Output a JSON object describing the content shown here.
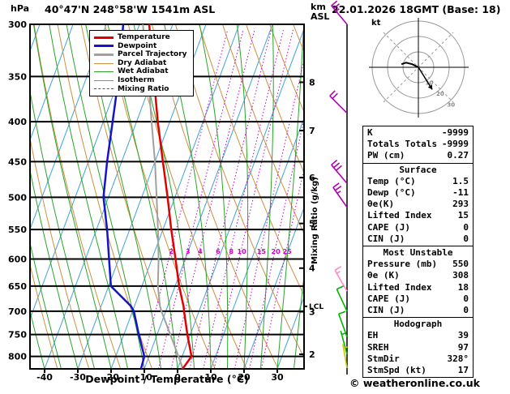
{
  "header": {
    "pressure_unit": "hPa",
    "station": "40°47'N 248°58'W 1541m ASL",
    "datetime": "22.01.2026 18GMT (Base: 18)",
    "altitude_unit_line1": "km",
    "altitude_unit_line2": "ASL"
  },
  "axes": {
    "xlabel": "Dewpoint / Temperature (°C)",
    "right_axis_label": "Mixing Ratio (g/kg)",
    "lcl_label": "LCL"
  },
  "legend": {
    "items": [
      {
        "label": "Temperature",
        "color": "#e00000",
        "thickness": 3,
        "style": "solid"
      },
      {
        "label": "Dewpoint",
        "color": "#1414cc",
        "thickness": 3,
        "style": "solid"
      },
      {
        "label": "Parcel Trajectory",
        "color": "#a0a0a0",
        "thickness": 3,
        "style": "solid"
      },
      {
        "label": "Dry Adiabat",
        "color": "#d08f3e",
        "thickness": 1,
        "style": "solid"
      },
      {
        "label": "Wet Adiabat",
        "color": "#29a329",
        "thickness": 1,
        "style": "solid"
      },
      {
        "label": "Isotherm",
        "color": "#3fa2d8",
        "thickness": 1,
        "style": "solid"
      },
      {
        "label": "Mixing Ratio",
        "color": "#cc00cc",
        "thickness": 1,
        "style": "dashed"
      }
    ]
  },
  "hodograph": {
    "unit_label": "kt",
    "ring_labels_kt": [
      10,
      20,
      30
    ],
    "storm_dir_deg": 328,
    "storm_speed_kt": 17,
    "trace_uv_kt": [
      [
        0,
        0
      ],
      [
        -4,
        2
      ],
      [
        -8,
        3
      ],
      [
        -11,
        2
      ]
    ]
  },
  "table": {
    "sections": [
      {
        "title": "",
        "rows": [
          {
            "label": "K",
            "value": "-9999"
          },
          {
            "label": "Totals Totals",
            "value": "-9999"
          },
          {
            "label": "PW (cm)",
            "value": "0.27"
          }
        ]
      },
      {
        "title": "Surface",
        "rows": [
          {
            "label": "Temp (°C)",
            "value": "1.5"
          },
          {
            "label": "Dewp (°C)",
            "value": "-11"
          },
          {
            "label": "θe(K)",
            "value": "293"
          },
          {
            "label": "Lifted Index",
            "value": "15"
          },
          {
            "label": "CAPE (J)",
            "value": "0"
          },
          {
            "label": "CIN (J)",
            "value": "0"
          }
        ]
      },
      {
        "title": "Most Unstable",
        "rows": [
          {
            "label": "Pressure (mb)",
            "value": "550"
          },
          {
            "label": "θe (K)",
            "value": "308"
          },
          {
            "label": "Lifted Index",
            "value": "18"
          },
          {
            "label": "CAPE (J)",
            "value": "0"
          },
          {
            "label": "CIN (J)",
            "value": "0"
          }
        ]
      },
      {
        "title": "Hodograph",
        "rows": [
          {
            "label": "EH",
            "value": "39"
          },
          {
            "label": "SREH",
            "value": "97"
          },
          {
            "label": "StmDir",
            "value": "328°"
          },
          {
            "label": "StmSpd (kt)",
            "value": "17"
          }
        ]
      }
    ]
  },
  "footer": {
    "copyright": "© weatheronline.co.uk"
  },
  "chart_data": {
    "type": "skewt-logp-sounding",
    "title": "40°47'N 248°58'W 1541m ASL",
    "valid": "22.01.2026 18GMT (Base: 18)",
    "xlabel": "Dewpoint / Temperature (°C)",
    "x_ticks_C": [
      -40,
      -30,
      -20,
      -10,
      0,
      10,
      20,
      30
    ],
    "pressure_axis_hPa": [
      300,
      350,
      400,
      450,
      500,
      550,
      600,
      650,
      700,
      750,
      800
    ],
    "pressure_range_hPa": [
      300,
      830
    ],
    "km_asl_ticks": [
      2,
      3,
      4,
      5,
      6,
      7,
      8
    ],
    "mixing_ratio_lines_gkg": [
      2,
      3,
      4,
      6,
      8,
      10,
      15,
      20,
      25
    ],
    "lcl_pressure_hPa": 690,
    "colors": {
      "temperature": "#e00000",
      "dewpoint": "#1414cc",
      "parcel": "#a0a0a0",
      "dry_adiabat": "#d08f3e",
      "wet_adiabat": "#29a329",
      "isotherm": "#3fa2d8",
      "mixing_ratio": "#cc00cc"
    },
    "sounding": {
      "pressure_hPa": [
        830,
        800,
        750,
        700,
        690,
        650,
        600,
        550,
        500,
        450,
        400,
        350,
        300
      ],
      "temperature_C": [
        1.5,
        2.8,
        -0.9,
        -4.5,
        -5.2,
        -8.8,
        -12.9,
        -17.5,
        -22.2,
        -27.6,
        -33.6,
        -39.9,
        -47.1
      ],
      "dewpoint_C": [
        -11,
        -11.4,
        -15.5,
        -19.6,
        -21,
        -29.3,
        -32.9,
        -36.8,
        -41.5,
        -44.4,
        -47.2,
        -50.4,
        -54.9
      ],
      "parcel_C": [
        1.5,
        -1.1,
        -6,
        -11.3,
        -12.3,
        -15.2,
        -18,
        -21.5,
        -25.5,
        -30,
        -35.5,
        -41.5,
        -49
      ]
    },
    "wind_barbs": [
      {
        "pressure_hPa": 300,
        "dir_deg": 320,
        "speed_kt": 25,
        "color": "#b400b4"
      },
      {
        "pressure_hPa": 390,
        "dir_deg": 315,
        "speed_kt": 20,
        "color": "#b400b4"
      },
      {
        "pressure_hPa": 480,
        "dir_deg": 320,
        "speed_kt": 30,
        "color": "#b400b4"
      },
      {
        "pressure_hPa": 515,
        "dir_deg": 325,
        "speed_kt": 25,
        "color": "#b400b4"
      },
      {
        "pressure_hPa": 660,
        "dir_deg": 330,
        "speed_kt": 15,
        "color": "#ff8cc8"
      },
      {
        "pressure_hPa": 700,
        "dir_deg": 335,
        "speed_kt": 10,
        "color": "#00b400"
      },
      {
        "pressure_hPa": 755,
        "dir_deg": 340,
        "speed_kt": 10,
        "color": "#00b400"
      },
      {
        "pressure_hPa": 795,
        "dir_deg": 345,
        "speed_kt": 5,
        "color": "#00b400"
      },
      {
        "pressure_hPa": 828,
        "dir_deg": 350,
        "speed_kt": 5,
        "color": "#c8c800"
      }
    ]
  }
}
